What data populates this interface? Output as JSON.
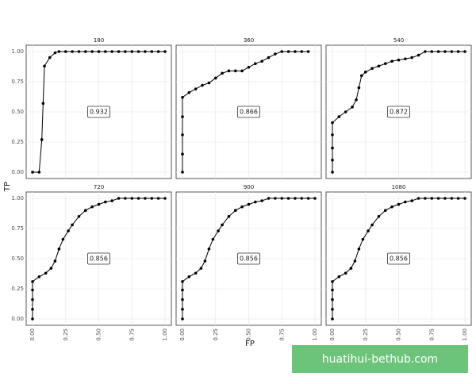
{
  "chart_data": [
    {
      "type": "line",
      "title": "180",
      "annotation": "0.932",
      "xlim": [
        0,
        1
      ],
      "ylim": [
        0,
        1
      ],
      "xticks": [
        0,
        0.25,
        0.5,
        0.75,
        1
      ],
      "yticks": [
        {
          "value": 0,
          "label": "0.00"
        },
        {
          "value": 0.25,
          "label": "0.25"
        },
        {
          "value": 0.5,
          "label": "0.50"
        },
        {
          "value": 0.75,
          "label": "0.75"
        },
        {
          "value": 1,
          "label": "1.00"
        }
      ],
      "x": [
        0,
        0.05,
        0.07,
        0.08,
        0.09,
        0.13,
        0.17,
        0.2,
        0.25,
        0.3,
        0.35,
        0.4,
        0.45,
        0.5,
        0.55,
        0.6,
        0.65,
        0.7,
        0.75,
        0.8,
        0.85,
        0.9,
        0.95,
        1
      ],
      "series": [
        {
          "color": "#000000",
          "values": [
            0,
            0,
            0.27,
            0.57,
            0.88,
            0.95,
            0.99,
            1,
            1,
            1,
            1,
            1,
            1,
            1,
            1,
            1,
            1,
            1,
            1,
            1,
            1,
            1,
            1,
            1
          ]
        }
      ]
    },
    {
      "type": "line",
      "title": "360",
      "annotation": "0.866",
      "xlim": [
        0,
        1
      ],
      "ylim": [
        0,
        1
      ],
      "xticks": [
        0,
        0.25,
        0.5,
        0.75,
        1
      ],
      "yticks": [
        0,
        0.25,
        0.5,
        0.75,
        1
      ],
      "x": [
        0,
        0,
        0,
        0,
        0,
        0.05,
        0.1,
        0.15,
        0.2,
        0.25,
        0.3,
        0.35,
        0.4,
        0.45,
        0.5,
        0.55,
        0.6,
        0.65,
        0.7,
        0.75,
        0.8,
        0.85,
        0.9,
        0.95
      ],
      "series": [
        {
          "color": "#000000",
          "values": [
            0,
            0.15,
            0.31,
            0.46,
            0.62,
            0.66,
            0.69,
            0.72,
            0.74,
            0.78,
            0.82,
            0.84,
            0.84,
            0.84,
            0.87,
            0.9,
            0.92,
            0.95,
            0.98,
            1,
            1,
            1,
            1,
            1
          ]
        }
      ]
    },
    {
      "type": "line",
      "title": "540",
      "annotation": "0.872",
      "xlim": [
        0,
        1
      ],
      "ylim": [
        0,
        1
      ],
      "xticks": [
        0,
        0.25,
        0.5,
        0.75,
        1
      ],
      "yticks": [
        0,
        0.25,
        0.5,
        0.75,
        1
      ],
      "x": [
        0,
        0,
        0,
        0,
        0,
        0.05,
        0.1,
        0.15,
        0.18,
        0.2,
        0.22,
        0.25,
        0.3,
        0.35,
        0.4,
        0.45,
        0.5,
        0.55,
        0.6,
        0.65,
        0.7,
        0.75,
        0.8,
        0.85,
        0.9,
        0.95,
        1
      ],
      "series": [
        {
          "color": "#000000",
          "values": [
            0,
            0.1,
            0.2,
            0.31,
            0.41,
            0.46,
            0.5,
            0.54,
            0.6,
            0.7,
            0.8,
            0.83,
            0.86,
            0.88,
            0.9,
            0.92,
            0.93,
            0.94,
            0.95,
            0.97,
            1,
            1,
            1,
            1,
            1,
            1,
            1
          ]
        }
      ]
    },
    {
      "type": "line",
      "title": "720",
      "annotation": "0.856",
      "xlim": [
        0,
        1
      ],
      "ylim": [
        0,
        1
      ],
      "xticks": [
        {
          "value": 0,
          "label": "0.00"
        },
        {
          "value": 0.25,
          "label": "0.25"
        },
        {
          "value": 0.5,
          "label": "0.50"
        },
        {
          "value": 0.75,
          "label": "0.75"
        },
        {
          "value": 1,
          "label": "1.00"
        }
      ],
      "yticks": [
        {
          "value": 0,
          "label": "0.00"
        },
        {
          "value": 0.25,
          "label": "0.25"
        },
        {
          "value": 0.5,
          "label": "0.50"
        },
        {
          "value": 0.75,
          "label": "0.75"
        },
        {
          "value": 1,
          "label": "1.00"
        }
      ],
      "x": [
        0,
        0,
        0,
        0,
        0,
        0.05,
        0.1,
        0.14,
        0.17,
        0.2,
        0.23,
        0.27,
        0.3,
        0.35,
        0.4,
        0.45,
        0.5,
        0.55,
        0.6,
        0.65,
        0.7,
        0.75,
        0.8,
        0.85,
        0.9,
        0.95,
        1
      ],
      "series": [
        {
          "color": "#000000",
          "values": [
            0,
            0.08,
            0.16,
            0.24,
            0.31,
            0.35,
            0.38,
            0.42,
            0.48,
            0.58,
            0.66,
            0.73,
            0.78,
            0.85,
            0.9,
            0.93,
            0.95,
            0.97,
            0.98,
            1,
            1,
            1,
            1,
            1,
            1,
            1,
            1
          ]
        }
      ]
    },
    {
      "type": "line",
      "title": "900",
      "annotation": "0.856",
      "xlim": [
        0,
        1
      ],
      "ylim": [
        0,
        1
      ],
      "xticks": [
        {
          "value": 0,
          "label": "0.00"
        },
        {
          "value": 0.25,
          "label": "0.25"
        },
        {
          "value": 0.5,
          "label": "0.50"
        },
        {
          "value": 0.75,
          "label": "0.75"
        },
        {
          "value": 1,
          "label": "1.00"
        }
      ],
      "yticks": [
        0,
        0.25,
        0.5,
        0.75,
        1
      ],
      "x": [
        0,
        0,
        0,
        0,
        0,
        0.05,
        0.1,
        0.14,
        0.17,
        0.2,
        0.23,
        0.27,
        0.3,
        0.35,
        0.4,
        0.45,
        0.5,
        0.55,
        0.6,
        0.65,
        0.7,
        0.75,
        0.8,
        0.85,
        0.9,
        0.95,
        1
      ],
      "series": [
        {
          "color": "#000000",
          "values": [
            0,
            0.08,
            0.16,
            0.24,
            0.31,
            0.35,
            0.38,
            0.42,
            0.48,
            0.58,
            0.66,
            0.73,
            0.78,
            0.85,
            0.9,
            0.93,
            0.95,
            0.97,
            0.98,
            1,
            1,
            1,
            1,
            1,
            1,
            1,
            1
          ]
        }
      ]
    },
    {
      "type": "line",
      "title": "1080",
      "annotation": "0.856",
      "xlim": [
        0,
        1
      ],
      "ylim": [
        0,
        1
      ],
      "xticks": [
        {
          "value": 0,
          "label": "0.00"
        },
        {
          "value": 0.25,
          "label": "0.25"
        },
        {
          "value": 0.5,
          "label": "0.50"
        },
        {
          "value": 0.75,
          "label": "0.75"
        },
        {
          "value": 1,
          "label": "1.00"
        }
      ],
      "yticks": [
        0,
        0.25,
        0.5,
        0.75,
        1
      ],
      "x": [
        0,
        0,
        0,
        0,
        0,
        0.05,
        0.1,
        0.14,
        0.17,
        0.2,
        0.23,
        0.27,
        0.3,
        0.35,
        0.4,
        0.45,
        0.5,
        0.55,
        0.6,
        0.65,
        0.7,
        0.75,
        0.8,
        0.85,
        0.9,
        0.95,
        1
      ],
      "series": [
        {
          "color": "#000000",
          "values": [
            0,
            0.08,
            0.16,
            0.24,
            0.31,
            0.35,
            0.38,
            0.42,
            0.48,
            0.58,
            0.66,
            0.73,
            0.78,
            0.85,
            0.9,
            0.93,
            0.95,
            0.97,
            0.98,
            1,
            1,
            1,
            1,
            1,
            1,
            1,
            1
          ]
        }
      ]
    }
  ],
  "x_label": "FP",
  "y_label": "TP",
  "watermark": "huatihui-bethub.com"
}
